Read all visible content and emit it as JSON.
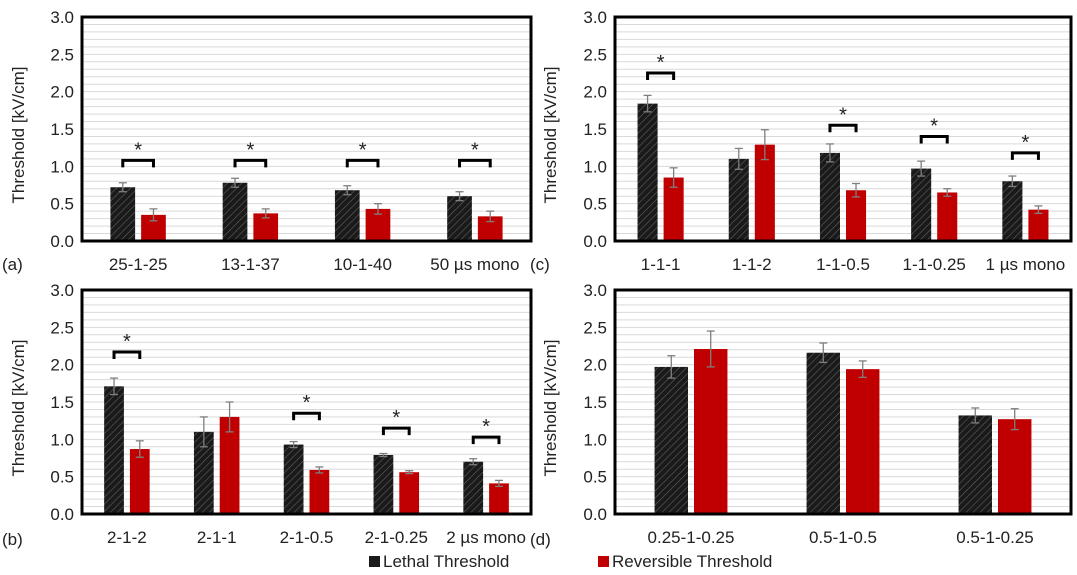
{
  "legend": {
    "lethal": {
      "label": "Lethal Threshold",
      "color": "#1a1a1a"
    },
    "reversible": {
      "label": "Reversible Threshold",
      "color": "#c00000"
    },
    "placement": "bottom-center"
  },
  "chart_data": [
    {
      "type": "bar",
      "panel": "(a)",
      "ylabel": "Threshold [kV/cm]",
      "ylim": [
        0,
        3.0
      ],
      "yticks": [
        "0.0",
        "0.5",
        "1.0",
        "1.5",
        "2.0",
        "2.5",
        "3.0"
      ],
      "grid": "horizontal",
      "categories": [
        "25-1-25",
        "13-1-37",
        "10-1-40",
        "50 µs mono"
      ],
      "series": [
        {
          "name": "Lethal Threshold",
          "values": [
            0.72,
            0.78,
            0.68,
            0.6
          ],
          "errors": [
            0.06,
            0.06,
            0.06,
            0.06
          ]
        },
        {
          "name": "Reversible Threshold",
          "values": [
            0.35,
            0.37,
            0.43,
            0.33
          ],
          "errors": [
            0.08,
            0.06,
            0.07,
            0.07
          ]
        }
      ],
      "significance": [
        {
          "index": 0,
          "y": 1.08,
          "label": "*"
        },
        {
          "index": 1,
          "y": 1.08,
          "label": "*"
        },
        {
          "index": 2,
          "y": 1.08,
          "label": "*"
        },
        {
          "index": 3,
          "y": 1.08,
          "label": "*"
        }
      ]
    },
    {
      "type": "bar",
      "panel": "(c)",
      "ylabel": "Threshold [kV/cm]",
      "ylim": [
        0,
        3.0
      ],
      "yticks": [
        "0.0",
        "0.5",
        "1.0",
        "1.5",
        "2.0",
        "2.5",
        "3.0"
      ],
      "grid": "horizontal",
      "categories": [
        "1-1-1",
        "1-1-2",
        "1-1-0.5",
        "1-1-0.25",
        "1 µs mono"
      ],
      "series": [
        {
          "name": "Lethal Threshold",
          "values": [
            1.84,
            1.1,
            1.18,
            0.97,
            0.8
          ],
          "errors": [
            0.11,
            0.14,
            0.12,
            0.1,
            0.07
          ]
        },
        {
          "name": "Reversible Threshold",
          "values": [
            0.85,
            1.29,
            0.68,
            0.65,
            0.42
          ],
          "errors": [
            0.13,
            0.2,
            0.09,
            0.05,
            0.05
          ]
        }
      ],
      "significance": [
        {
          "index": 0,
          "y": 2.25,
          "label": "*"
        },
        {
          "index": 2,
          "y": 1.55,
          "label": "*"
        },
        {
          "index": 3,
          "y": 1.4,
          "label": "*"
        },
        {
          "index": 4,
          "y": 1.18,
          "label": "*"
        }
      ]
    },
    {
      "type": "bar",
      "panel": "(b)",
      "ylabel": "Threshold [kV/cm]",
      "ylim": [
        0,
        3.0
      ],
      "yticks": [
        "0.0",
        "0.5",
        "1.0",
        "1.5",
        "2.0",
        "2.5",
        "3.0"
      ],
      "grid": "horizontal",
      "categories": [
        "2-1-2",
        "2-1-1",
        "2-1-0.5",
        "2-1-0.25",
        "2 µs mono"
      ],
      "series": [
        {
          "name": "Lethal Threshold",
          "values": [
            1.71,
            1.1,
            0.93,
            0.79,
            0.7
          ],
          "errors": [
            0.11,
            0.2,
            0.04,
            0.02,
            0.04
          ]
        },
        {
          "name": "Reversible Threshold",
          "values": [
            0.87,
            1.3,
            0.59,
            0.56,
            0.41
          ],
          "errors": [
            0.11,
            0.2,
            0.04,
            0.02,
            0.04
          ]
        }
      ],
      "significance": [
        {
          "index": 0,
          "y": 2.17,
          "label": "*"
        },
        {
          "index": 2,
          "y": 1.35,
          "label": "*"
        },
        {
          "index": 3,
          "y": 1.15,
          "label": "*"
        },
        {
          "index": 4,
          "y": 1.03,
          "label": "*"
        }
      ]
    },
    {
      "type": "bar",
      "panel": "(d)",
      "ylabel": "Threshold [kV/cm]",
      "ylim": [
        0,
        3.0
      ],
      "yticks": [
        "0.0",
        "0.5",
        "1.0",
        "1.5",
        "2.0",
        "2.5",
        "3.0"
      ],
      "grid": "horizontal",
      "categories": [
        "0.25-1-0.25",
        "0.5-1-0.5",
        "0.5-1-0.25"
      ],
      "series": [
        {
          "name": "Lethal Threshold",
          "values": [
            1.97,
            2.16,
            1.32
          ],
          "errors": [
            0.15,
            0.13,
            0.1
          ]
        },
        {
          "name": "Reversible Threshold",
          "values": [
            2.21,
            1.94,
            1.27
          ],
          "errors": [
            0.24,
            0.11,
            0.14
          ]
        }
      ],
      "significance": []
    }
  ]
}
